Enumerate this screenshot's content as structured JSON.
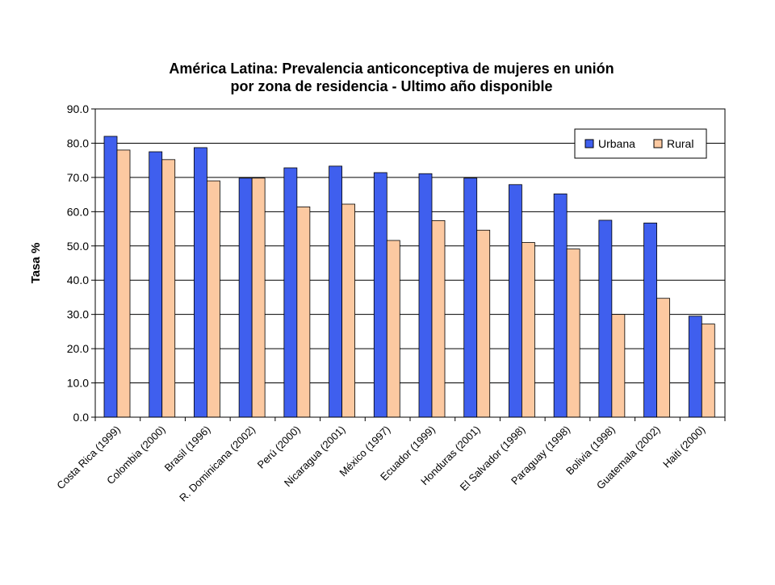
{
  "chart_data": {
    "type": "bar",
    "title": "América Latina: Prevalencia anticonceptiva de mujeres en unión",
    "subtitle": "por zona de residencia - Ultimo año disponible",
    "ylabel": "Tasa %",
    "xlabel": "",
    "ylim": [
      0,
      90
    ],
    "yticks": [
      "0.0",
      "10.0",
      "20.0",
      "30.0",
      "40.0",
      "50.0",
      "60.0",
      "70.0",
      "80.0",
      "90.0"
    ],
    "grid": "horizontal",
    "legend_position": "top-right",
    "categories": [
      "Costa Rica (1999)",
      "Colombia (2000)",
      "Brasil (1996)",
      "R. Dominicana (2002)",
      "Perú (2000)",
      "Nicaragua (2001)",
      "México  (1997)",
      "Ecuador (1999)",
      "Honduras (2001)",
      "El Salvador (1998)",
      "Paraguay (1998)",
      "Bolivia (1998)",
      "Guatemala (2002)",
      "Haiti (2000)"
    ],
    "series": [
      {
        "name": "Urbana",
        "color": "#3F5FEE",
        "values": [
          82.0,
          77.5,
          78.7,
          69.8,
          72.8,
          73.3,
          71.4,
          71.1,
          69.8,
          67.9,
          65.2,
          57.5,
          56.7,
          29.5
        ]
      },
      {
        "name": "Rural",
        "color": "#FCC9A1",
        "values": [
          78.0,
          75.2,
          69.0,
          69.8,
          61.4,
          62.2,
          51.6,
          57.4,
          54.6,
          51.0,
          49.1,
          30.0,
          34.7,
          27.2
        ]
      }
    ]
  }
}
